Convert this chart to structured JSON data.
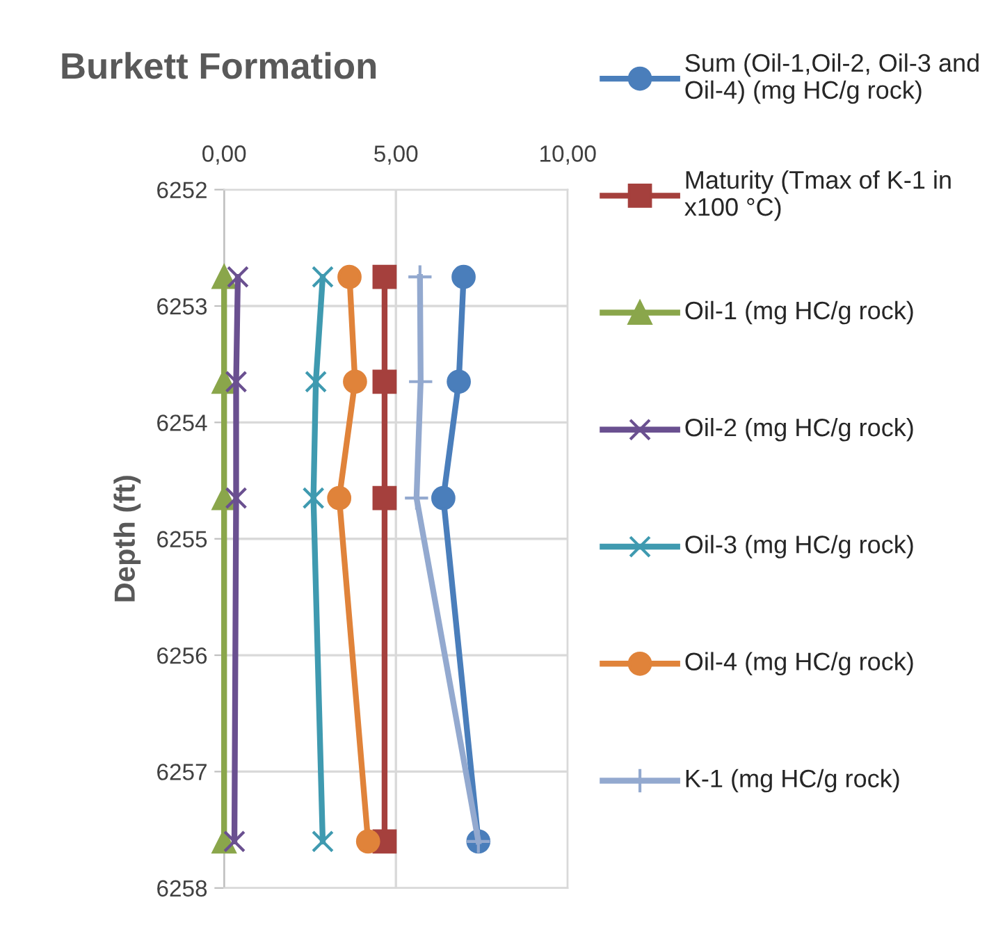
{
  "chart_data": {
    "type": "line",
    "title": "Burkett Formation",
    "ylabel": "Depth (ft)",
    "orientation": "horizontal",
    "x": [
      6252.75,
      6253.65,
      6254.65,
      6257.6
    ],
    "xlim": [
      0,
      10
    ],
    "xticks": [
      {
        "value": 0,
        "label": "0,00"
      },
      {
        "value": 5,
        "label": "5,00"
      },
      {
        "value": 10,
        "label": "10,00"
      }
    ],
    "ylim": [
      6258,
      6252
    ],
    "yticks": [
      6252,
      6253,
      6254,
      6255,
      6256,
      6257,
      6258
    ],
    "grid": true,
    "legend": "right",
    "series": [
      {
        "name": "Sum (Oil-1,Oil-2, Oil-3 and Oil-4) (mg HC/g rock)",
        "color": "#4a7ebb",
        "marker": "circle",
        "values": [
          6.97,
          6.83,
          6.38,
          7.4
        ]
      },
      {
        "name": "Maturity (Tmax of K-1 in x100 °C)",
        "color": "#a5403d",
        "marker": "square",
        "values": [
          4.67,
          4.67,
          4.67,
          4.67
        ]
      },
      {
        "name": "Oil-1 (mg HC/g rock)",
        "color": "#8aa64b",
        "marker": "triangle",
        "values": [
          0.0,
          0.0,
          0.0,
          0.0
        ]
      },
      {
        "name": "Oil-2 (mg HC/g rock)",
        "color": "#6a5090",
        "marker": "cross",
        "values": [
          0.4,
          0.35,
          0.35,
          0.3
        ]
      },
      {
        "name": "Oil-3 (mg HC/g rock)",
        "color": "#3f9ab0",
        "marker": "cross",
        "values": [
          2.87,
          2.67,
          2.6,
          2.87
        ]
      },
      {
        "name": "Oil-4 (mg HC/g rock)",
        "color": "#e0833a",
        "marker": "circle",
        "values": [
          3.65,
          3.81,
          3.35,
          4.19
        ]
      },
      {
        "name": "K-1 (mg HC/g rock)",
        "color": "#93a9cf",
        "marker": "plus",
        "values": [
          5.7,
          5.72,
          5.6,
          7.4
        ]
      }
    ]
  }
}
